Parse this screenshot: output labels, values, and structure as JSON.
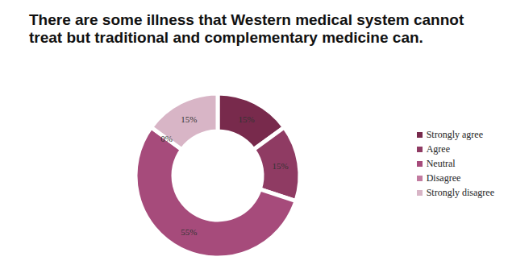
{
  "chart_data": {
    "type": "pie",
    "title": "There are some illness that Western medical system cannot treat but traditional and complementary medicine can.",
    "categories": [
      "Strongly agree",
      "Agree",
      "Neutral",
      "Disagree",
      "Strongly disagree"
    ],
    "values": [
      15,
      15,
      55,
      0,
      15
    ],
    "value_labels": [
      "15%",
      "15%",
      "55%",
      "0%",
      "15%"
    ],
    "colors": [
      "#782a4c",
      "#8f3b63",
      "#a64b7b",
      "#c27ba0",
      "#d8b5c6"
    ],
    "legend": "right",
    "data_labels": true
  }
}
